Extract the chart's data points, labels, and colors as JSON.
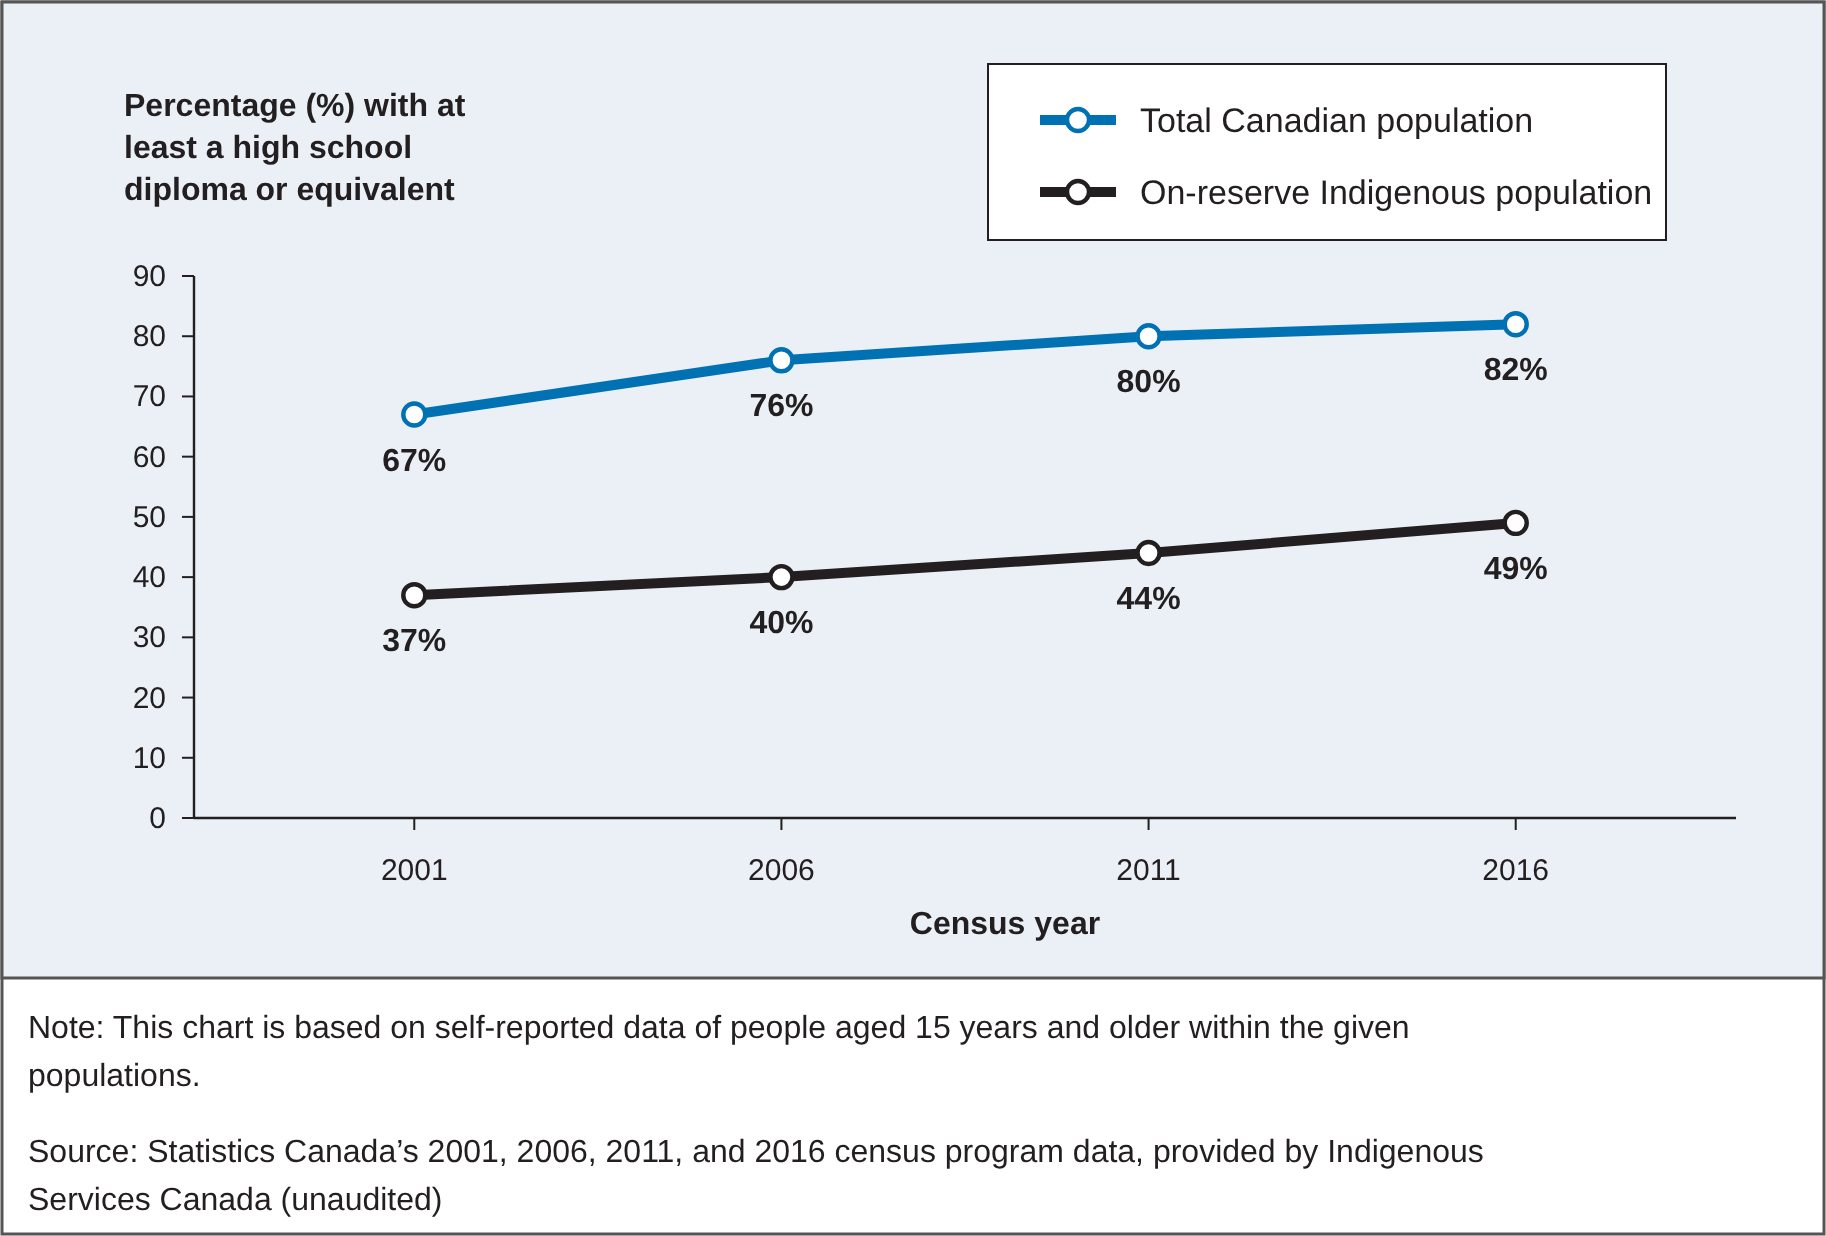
{
  "chart_data": {
    "type": "line",
    "ylabel": "Percentage (%) with at least a high school diploma or equivalent",
    "xlabel": "Census year",
    "categories": [
      "2001",
      "2006",
      "2011",
      "2016"
    ],
    "series": [
      {
        "name": "Total Canadian population",
        "color": "#0071b3",
        "values": [
          67,
          76,
          80,
          82
        ],
        "value_labels": [
          "67%",
          "76%",
          "80%",
          "82%"
        ]
      },
      {
        "name": "On-reserve Indigenous population",
        "color": "#231f20",
        "values": [
          37,
          40,
          44,
          49
        ],
        "value_labels": [
          "37%",
          "40%",
          "44%",
          "49%"
        ]
      }
    ],
    "ylim": [
      0,
      90
    ],
    "yticks": [
      0,
      10,
      20,
      30,
      40,
      50,
      60,
      70,
      80,
      90
    ],
    "grid": false,
    "legend": "top right",
    "marker": "circle",
    "line_style": "solid",
    "annotations": [
      "Note: This chart is based on self-reported data of people aged 15 years and older within the given populations.",
      "Source: Statistics Canada’s 2001, 2006, 2011, and 2016 census program data, provided by Indigenous Services Canada (unaudited)"
    ]
  }
}
